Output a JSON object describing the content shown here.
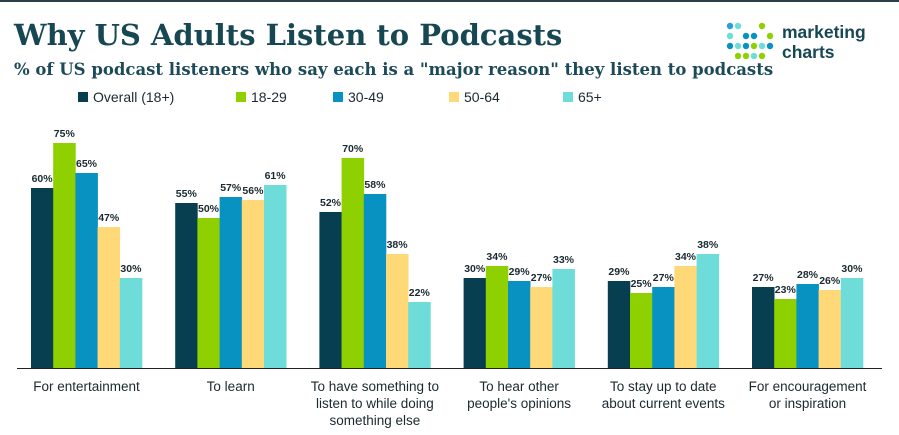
{
  "header": {
    "title": "Why US Adults Listen to Podcasts",
    "subtitle": "% of US podcast listeners who say each is a \"major reason\" they listen to podcasts"
  },
  "logo": {
    "line1": "marketing",
    "line2": "charts"
  },
  "colors": {
    "overall": "#083f50",
    "age_18_29": "#8fd000",
    "age_30_49": "#0892c2",
    "age_50_64": "#ffd978",
    "age_65_plus": "#6edcd9",
    "title": "#174753",
    "axis": "#222222"
  },
  "chart_data": {
    "type": "bar",
    "title": "Why US Adults Listen to Podcasts",
    "subtitle": "% of US podcast listeners who say each is a \"major reason\" they listen to podcasts",
    "xlabel": "",
    "ylabel": "",
    "ylim": [
      0,
      80
    ],
    "grid": false,
    "legend": "top-left",
    "categories": [
      [
        "For entertainment"
      ],
      [
        "To learn"
      ],
      [
        "To have something to",
        "listen to while doing",
        "something else"
      ],
      [
        "To hear other",
        "people's opinions"
      ],
      [
        "To stay up to date",
        "about current events"
      ],
      [
        "For encouragement",
        "or inspiration"
      ]
    ],
    "series": [
      {
        "name": "Overall (18+)",
        "color_key": "overall",
        "values": [
          60,
          55,
          52,
          30,
          29,
          27
        ]
      },
      {
        "name": "18-29",
        "color_key": "age_18_29",
        "values": [
          75,
          50,
          70,
          34,
          25,
          23
        ]
      },
      {
        "name": "30-49",
        "color_key": "age_30_49",
        "values": [
          65,
          57,
          58,
          29,
          27,
          28
        ]
      },
      {
        "name": "50-64",
        "color_key": "age_50_64",
        "values": [
          47,
          56,
          38,
          27,
          34,
          26
        ]
      },
      {
        "name": "65+",
        "color_key": "age_65_plus",
        "values": [
          30,
          61,
          22,
          33,
          38,
          30
        ]
      }
    ],
    "value_suffix": "%"
  }
}
